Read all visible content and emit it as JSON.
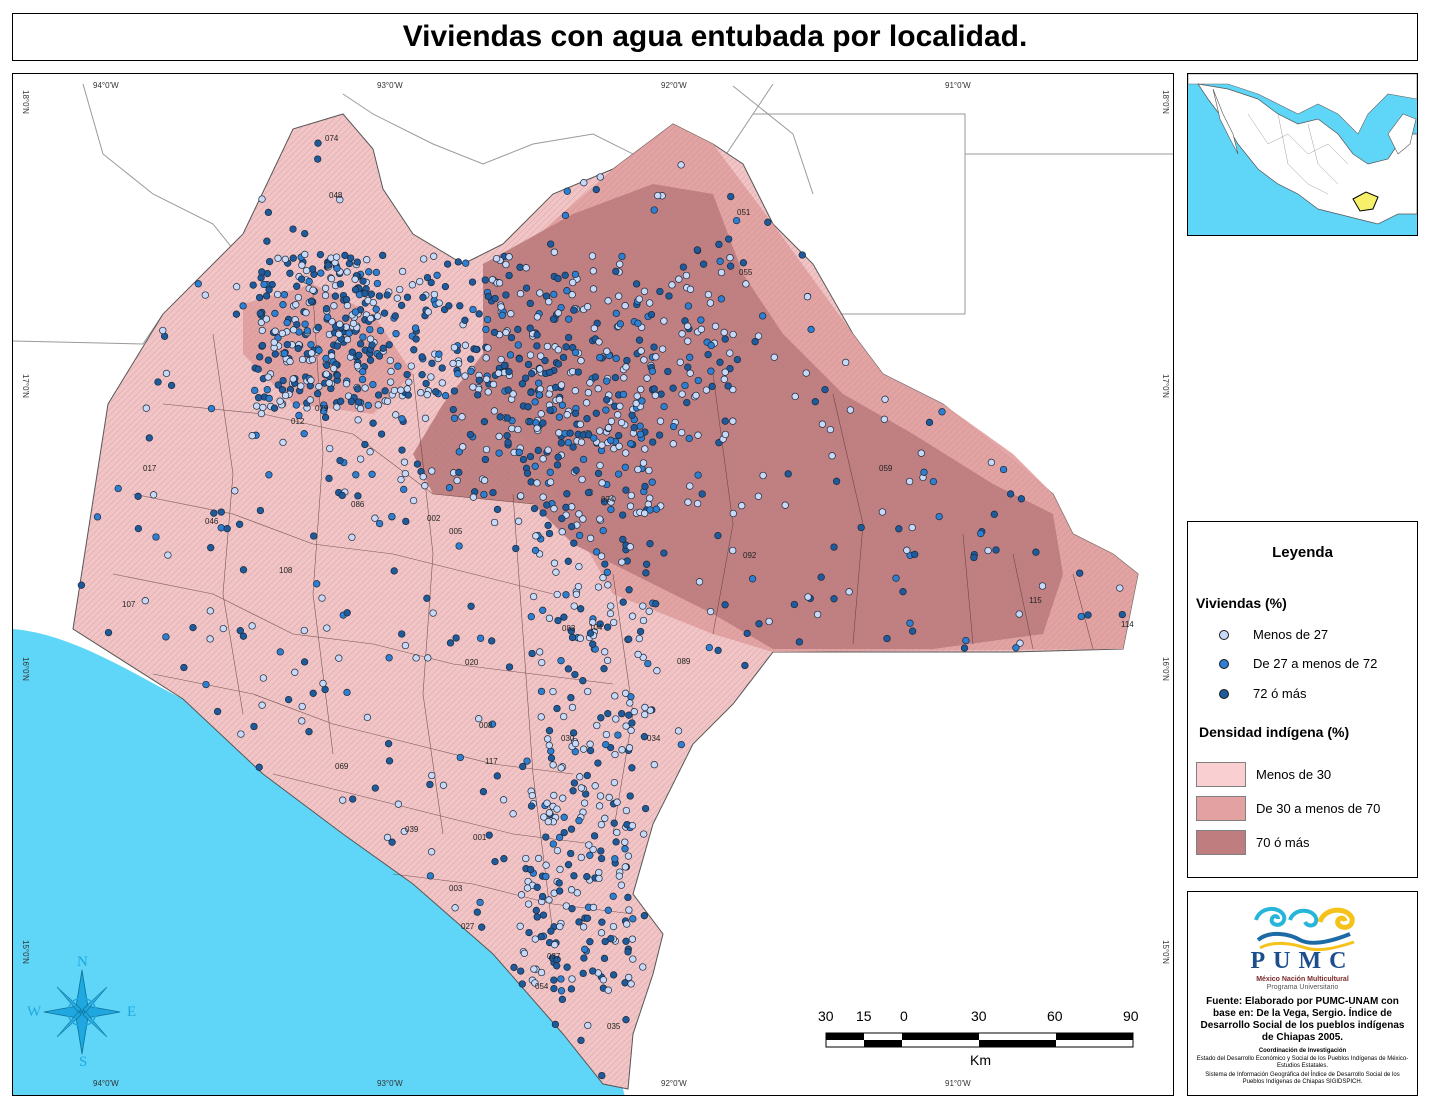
{
  "title": "Viviendas con agua entubada por localidad.",
  "graticule": {
    "top_lon": [
      "94°0'W",
      "93°0'W",
      "92°0'W",
      "91°0'W"
    ],
    "bottom_lon": [
      "94°0'W",
      "93°0'W",
      "92°0'W",
      "91°0'W"
    ],
    "lat": [
      "18°0'N",
      "17°0'N",
      "16°0'N",
      "15°0'N"
    ]
  },
  "compass": {
    "n": "N",
    "s": "S",
    "e": "E",
    "w": "W"
  },
  "scale_bar": {
    "labels": [
      "30",
      "15",
      "0",
      "30",
      "60",
      "90"
    ],
    "unit": "Km"
  },
  "legend": {
    "title": "Leyenda",
    "points_head": "Viviendas (%)",
    "points": [
      {
        "label": "Menos de 27",
        "color": "#c8d8f8"
      },
      {
        "label": "De 27 a menos de 72",
        "color": "#2e7fd1"
      },
      {
        "label": "72 ó más",
        "color": "#1f5a9c"
      }
    ],
    "density_head": "Densidad indígena (%)",
    "density": [
      {
        "label": "Menos de 30",
        "color": "#f9cfd1"
      },
      {
        "label": "De 30 a menos de 70",
        "color": "#e3a1a1"
      },
      {
        "label": "70 ó más",
        "color": "#bf7d80"
      }
    ]
  },
  "credits": {
    "logo_text": "PUMC",
    "logo_sub1": "México Nación Multicultural",
    "logo_sub2": "Programa Universitario",
    "source": "Fuente: Elaborado por PUMC-UNAM con base en: De la Vega, Sergio. Índice de Desarrollo Social de los pueblos indígenas de Chiapas 2005.",
    "coord_head": "Coordinación de Investigación",
    "coord_line1": "Estado del Desarrollo Económico y Social de los Pueblos Indígenas de México- Estudios Estatales.",
    "coord_line2": "Sistema de Información Geográfica del Índice de Desarrollo Social de los Pueblos Indígenas de Chiapas SIGIDSPICH."
  },
  "municipality_labels": [
    "074",
    "048",
    "059",
    "051",
    "012",
    "017",
    "046",
    "086",
    "108",
    "107",
    "020",
    "008",
    "117",
    "030",
    "034",
    "089",
    "001",
    "003",
    "054",
    "035",
    "037",
    "024",
    "104",
    "083",
    "114",
    "115",
    "055",
    "092",
    "002",
    "069",
    "027",
    "079",
    "005",
    "039"
  ]
}
